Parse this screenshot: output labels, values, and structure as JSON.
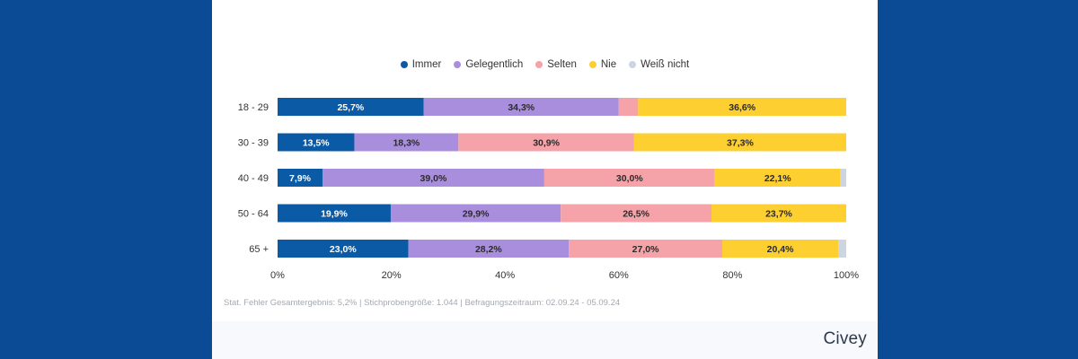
{
  "chart_data": {
    "type": "bar",
    "orientation": "horizontal",
    "stacked": true,
    "categories": [
      "18 - 29",
      "30 - 39",
      "40 - 49",
      "50 - 64",
      "65 +"
    ],
    "series": [
      {
        "name": "Immer",
        "color": "#0b5aa5",
        "values": [
          25.7,
          13.5,
          7.9,
          19.9,
          23.0
        ],
        "labels": [
          "25,7%",
          "13,5%",
          "7,9%",
          "19,9%",
          "23,0%"
        ]
      },
      {
        "name": "Gelegentlich",
        "color": "#a98ede",
        "values": [
          34.3,
          18.3,
          39.0,
          29.9,
          28.2
        ],
        "labels": [
          "34,3%",
          "18,3%",
          "39,0%",
          "29,9%",
          "28,2%"
        ]
      },
      {
        "name": "Selten",
        "color": "#f5a2a9",
        "values": [
          3.4,
          30.9,
          30.0,
          26.5,
          27.0
        ],
        "labels": [
          "",
          "30,9%",
          "30,0%",
          "26,5%",
          "27,0%"
        ]
      },
      {
        "name": "Nie",
        "color": "#fdcf30",
        "values": [
          36.6,
          37.3,
          22.1,
          23.7,
          20.4
        ],
        "labels": [
          "36,6%",
          "37,3%",
          "22,1%",
          "23,7%",
          "20,4%"
        ]
      },
      {
        "name": "Weiß nicht",
        "color": "#cdd6e0",
        "values": [
          0.0,
          0.0,
          1.0,
          0.0,
          1.4
        ],
        "labels": [
          "",
          "",
          "",
          "",
          ""
        ]
      }
    ],
    "xlim": [
      0,
      100
    ],
    "xticks": [
      0,
      20,
      40,
      60,
      80,
      100
    ],
    "xtick_labels": [
      "0%",
      "20%",
      "40%",
      "60%",
      "80%",
      "100%"
    ],
    "legend_position": "top-center",
    "grid": false
  },
  "footnote": "Stat. Fehler Gesamtergebnis: 5,2% | Stichprobengröße: 1.044 | Befragungszeitraum: 02.09.24 - 05.09.24",
  "brand": "Civey"
}
